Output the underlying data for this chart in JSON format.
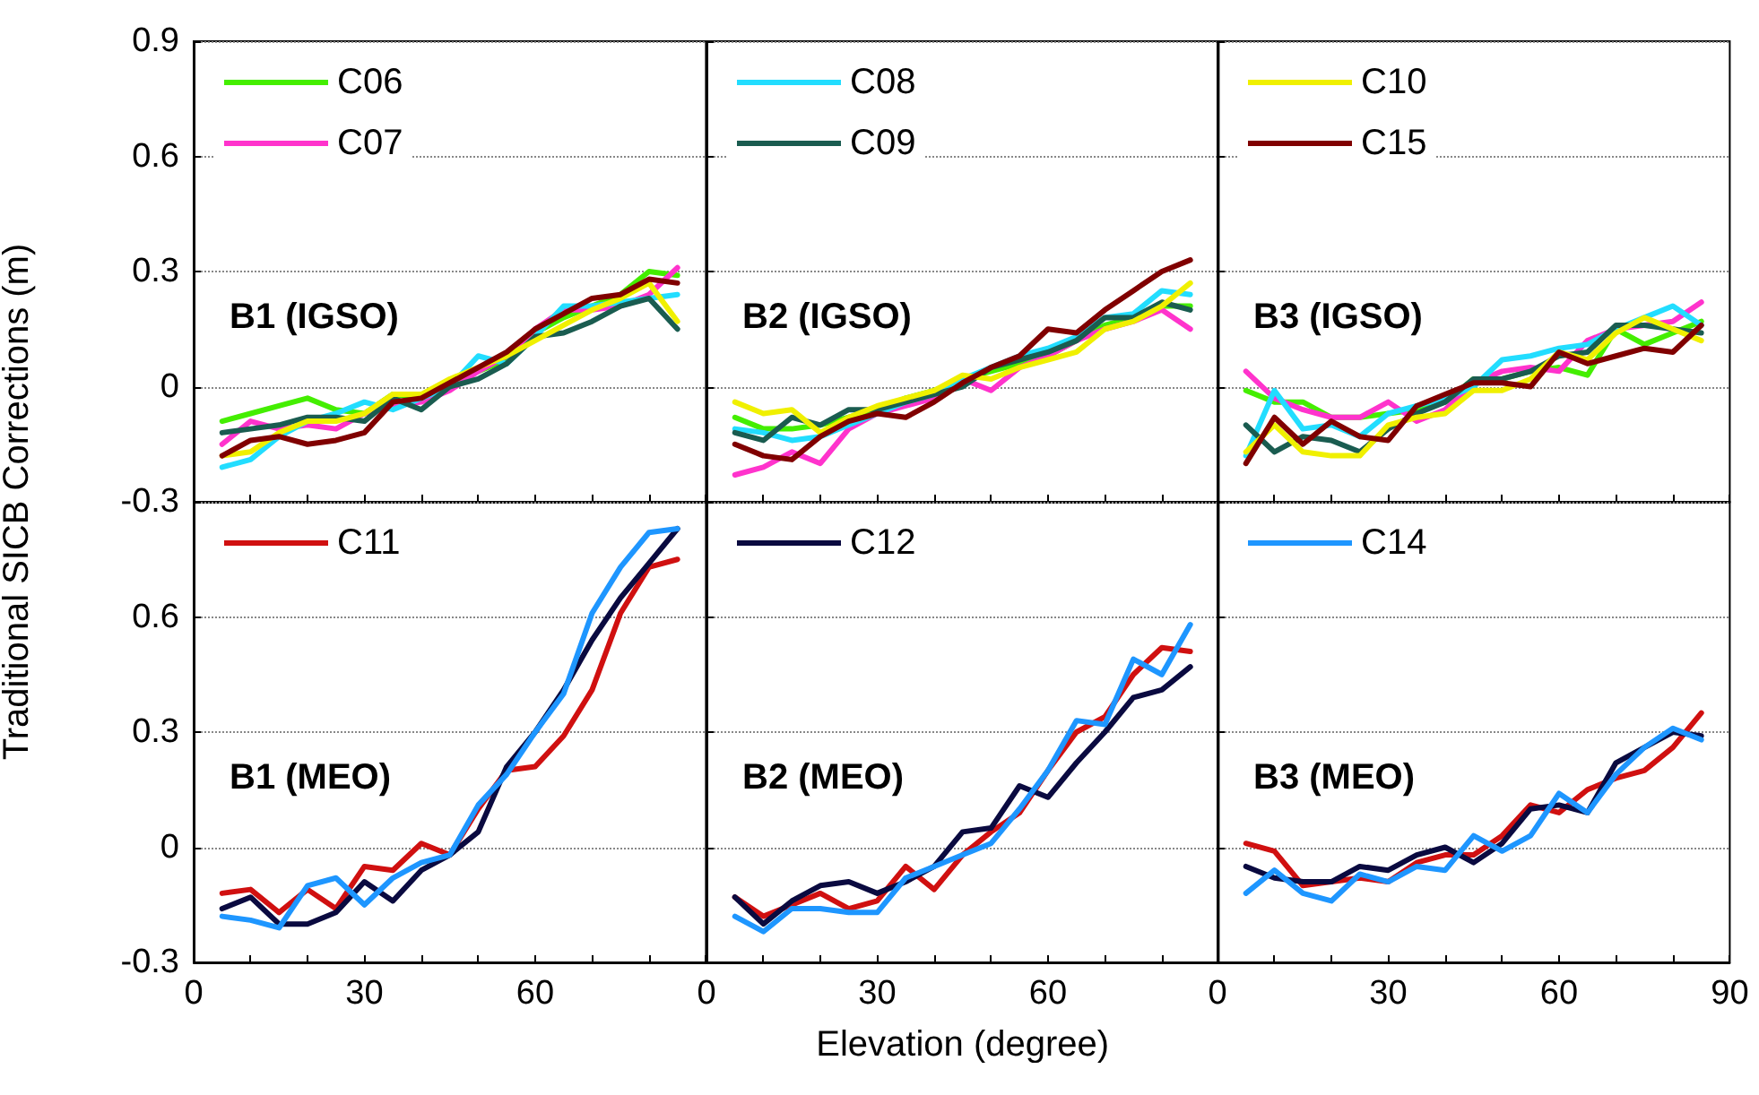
{
  "chart_data": [
    {
      "type": "line",
      "annotations": [
        "B1 (IGSO)"
      ],
      "ylabel": "Traditional SICB Corrections (m)",
      "x": [
        5,
        10,
        15,
        20,
        25,
        30,
        35,
        40,
        45,
        50,
        55,
        60,
        65,
        70,
        75,
        80,
        85
      ],
      "xlim": [
        0,
        90
      ],
      "ylim": [
        -0.3,
        0.9
      ],
      "xticks": [
        0,
        {
          "value": 10,
          "label": null
        },
        {
          "value": 20,
          "label": null
        },
        30,
        {
          "value": 40,
          "label": null
        },
        {
          "value": 50,
          "label": null
        },
        60,
        {
          "value": 70,
          "label": null
        },
        {
          "value": 80,
          "label": null
        },
        {
          "value": 90,
          "label": null
        }
      ],
      "yticks": [
        -0.3,
        0,
        0.3,
        0.6,
        0.9
      ],
      "tick_labels": "y",
      "grid": "y",
      "legend": "top left",
      "line_style": "solid",
      "marker": "none",
      "series": [
        {
          "name": "C06",
          "color": "#44ee00",
          "values": [
            -0.09,
            -0.07,
            -0.05,
            -0.03,
            -0.06,
            -0.07,
            -0.02,
            -0.03,
            0.01,
            0.04,
            0.07,
            0.14,
            0.18,
            0.21,
            0.24,
            0.3,
            0.29
          ]
        },
        {
          "name": "C07",
          "color": "#ff33cc",
          "values": [
            -0.15,
            -0.09,
            -0.11,
            -0.1,
            -0.11,
            -0.07,
            -0.05,
            -0.04,
            -0.01,
            0.04,
            0.08,
            0.15,
            0.2,
            0.2,
            0.21,
            0.24,
            0.31
          ]
        },
        {
          "color": "#22ddff",
          "values": [
            -0.21,
            -0.19,
            -0.13,
            -0.09,
            -0.07,
            -0.04,
            -0.06,
            -0.03,
            0.0,
            0.08,
            0.06,
            0.13,
            0.21,
            0.21,
            0.22,
            0.23,
            0.24
          ]
        },
        {
          "color": "#1a5c50",
          "values": [
            -0.12,
            -0.11,
            -0.1,
            -0.08,
            -0.08,
            -0.09,
            -0.03,
            -0.06,
            0.0,
            0.02,
            0.06,
            0.13,
            0.14,
            0.17,
            0.21,
            0.23,
            0.15
          ]
        },
        {
          "color": "#f0f000",
          "values": [
            -0.18,
            -0.17,
            -0.12,
            -0.09,
            -0.09,
            -0.07,
            -0.02,
            -0.02,
            0.02,
            0.05,
            0.08,
            0.12,
            0.16,
            0.2,
            0.23,
            0.27,
            0.17
          ]
        },
        {
          "color": "#800000",
          "values": [
            -0.18,
            -0.14,
            -0.13,
            -0.15,
            -0.14,
            -0.12,
            -0.04,
            -0.03,
            0.01,
            0.05,
            0.09,
            0.15,
            0.19,
            0.23,
            0.24,
            0.28,
            0.27
          ]
        }
      ]
    },
    {
      "type": "line",
      "annotations": [
        "B2 (IGSO)"
      ],
      "x": [
        5,
        10,
        15,
        20,
        25,
        30,
        35,
        40,
        45,
        50,
        55,
        60,
        65,
        70,
        75,
        80,
        85
      ],
      "xlim": [
        0,
        90
      ],
      "ylim": [
        -0.3,
        0.9
      ],
      "xticks": [
        0,
        {
          "value": 10,
          "label": null
        },
        {
          "value": 20,
          "label": null
        },
        30,
        {
          "value": 40,
          "label": null
        },
        {
          "value": 50,
          "label": null
        },
        60,
        {
          "value": 70,
          "label": null
        },
        {
          "value": 80,
          "label": null
        },
        {
          "value": 90,
          "label": null
        }
      ],
      "yticks": [
        -0.3,
        0,
        0.3,
        0.6,
        0.9
      ],
      "tick_labels": false,
      "grid": "y",
      "legend": "top left",
      "line_style": "solid",
      "marker": "none",
      "series": [
        {
          "color": "#44ee00",
          "values": [
            -0.08,
            -0.11,
            -0.11,
            -0.1,
            -0.08,
            -0.06,
            -0.03,
            -0.01,
            0.02,
            0.04,
            0.06,
            0.08,
            0.12,
            0.16,
            0.18,
            0.21,
            0.21
          ]
        },
        {
          "color": "#ff33cc",
          "values": [
            -0.23,
            -0.21,
            -0.17,
            -0.2,
            -0.11,
            -0.07,
            -0.05,
            -0.03,
            0.02,
            -0.01,
            0.05,
            0.08,
            0.12,
            0.15,
            0.17,
            0.2,
            0.15
          ]
        },
        {
          "name": "C08",
          "color": "#22ddff",
          "values": [
            -0.11,
            -0.12,
            -0.14,
            -0.13,
            -0.1,
            -0.07,
            -0.04,
            -0.02,
            0.02,
            0.05,
            0.08,
            0.1,
            0.13,
            0.18,
            0.19,
            0.25,
            0.24
          ]
        },
        {
          "name": "C09",
          "color": "#1a5c50",
          "values": [
            -0.12,
            -0.14,
            -0.08,
            -0.1,
            -0.06,
            -0.06,
            -0.04,
            -0.02,
            0.0,
            0.05,
            0.07,
            0.09,
            0.12,
            0.18,
            0.18,
            0.22,
            0.2
          ]
        },
        {
          "color": "#f0f000",
          "values": [
            -0.04,
            -0.07,
            -0.06,
            -0.12,
            -0.08,
            -0.05,
            -0.03,
            -0.01,
            0.03,
            0.02,
            0.05,
            0.07,
            0.09,
            0.15,
            0.17,
            0.21,
            0.27
          ]
        },
        {
          "color": "#800000",
          "values": [
            -0.15,
            -0.18,
            -0.19,
            -0.13,
            -0.09,
            -0.07,
            -0.08,
            -0.04,
            0.01,
            0.05,
            0.08,
            0.15,
            0.14,
            0.2,
            0.25,
            0.3,
            0.33
          ]
        }
      ]
    },
    {
      "type": "line",
      "annotations": [
        "B3 (IGSO)"
      ],
      "x": [
        5,
        10,
        15,
        20,
        25,
        30,
        35,
        40,
        45,
        50,
        55,
        60,
        65,
        70,
        75,
        80,
        85
      ],
      "xlim": [
        0,
        90
      ],
      "ylim": [
        -0.3,
        0.9
      ],
      "xticks": [
        0,
        {
          "value": 10,
          "label": null
        },
        {
          "value": 20,
          "label": null
        },
        30,
        {
          "value": 40,
          "label": null
        },
        {
          "value": 50,
          "label": null
        },
        60,
        {
          "value": 70,
          "label": null
        },
        {
          "value": 80,
          "label": null
        },
        90
      ],
      "yticks": [
        -0.3,
        0,
        0.3,
        0.6,
        0.9
      ],
      "tick_labels": false,
      "grid": "y",
      "legend": "top left",
      "line_style": "solid",
      "marker": "none",
      "series": [
        {
          "color": "#44ee00",
          "values": [
            -0.01,
            -0.04,
            -0.04,
            -0.08,
            -0.08,
            -0.07,
            -0.06,
            -0.04,
            0.02,
            0.02,
            0.04,
            0.05,
            0.03,
            0.15,
            0.11,
            0.14,
            0.17
          ]
        },
        {
          "color": "#ff33cc",
          "values": [
            0.04,
            -0.03,
            -0.06,
            -0.08,
            -0.08,
            -0.04,
            -0.09,
            -0.06,
            0.01,
            0.04,
            0.05,
            0.04,
            0.12,
            0.15,
            0.16,
            0.17,
            0.22
          ]
        },
        {
          "color": "#22ddff",
          "values": [
            -0.18,
            -0.01,
            -0.11,
            -0.1,
            -0.13,
            -0.07,
            -0.05,
            -0.03,
            0.0,
            0.07,
            0.08,
            0.1,
            0.11,
            0.15,
            0.18,
            0.21,
            0.16
          ]
        },
        {
          "color": "#1a5c50",
          "values": [
            -0.1,
            -0.17,
            -0.13,
            -0.14,
            -0.17,
            -0.11,
            -0.07,
            -0.04,
            0.02,
            0.02,
            0.04,
            0.08,
            0.09,
            0.16,
            0.16,
            0.15,
            0.14
          ]
        },
        {
          "name": "C10",
          "color": "#f0f000",
          "values": [
            -0.17,
            -0.1,
            -0.17,
            -0.18,
            -0.18,
            -0.1,
            -0.08,
            -0.07,
            -0.01,
            -0.01,
            0.02,
            0.09,
            0.07,
            0.14,
            0.18,
            0.15,
            0.12
          ]
        },
        {
          "name": "C15",
          "color": "#800000",
          "values": [
            -0.2,
            -0.08,
            -0.15,
            -0.09,
            -0.13,
            -0.14,
            -0.05,
            -0.02,
            0.01,
            0.01,
            0.0,
            0.09,
            0.06,
            0.08,
            0.1,
            0.09,
            0.16
          ]
        }
      ]
    },
    {
      "type": "line",
      "annotations": [
        "B1 (MEO)"
      ],
      "x": [
        5,
        10,
        15,
        20,
        25,
        30,
        35,
        40,
        45,
        50,
        55,
        60,
        65,
        70,
        75,
        80,
        85
      ],
      "xlim": [
        0,
        90
      ],
      "ylim": [
        -0.3,
        0.9
      ],
      "xticks": [
        0,
        {
          "value": 10,
          "label": null
        },
        {
          "value": 20,
          "label": null
        },
        30,
        {
          "value": 40,
          "label": null
        },
        {
          "value": 50,
          "label": null
        },
        60,
        {
          "value": 70,
          "label": null
        },
        {
          "value": 80,
          "label": null
        },
        {
          "value": 90,
          "label": null
        }
      ],
      "yticks": [
        -0.3,
        0,
        0.3,
        0.6,
        {
          "value": 0.9,
          "label": null
        }
      ],
      "grid": "y",
      "legend": "top left",
      "line_style": "solid",
      "marker": "none",
      "series": [
        {
          "name": "C11",
          "color": "#d01010",
          "values": [
            -0.12,
            -0.11,
            -0.17,
            -0.11,
            -0.16,
            -0.05,
            -0.06,
            0.01,
            -0.02,
            0.1,
            0.2,
            0.21,
            0.29,
            0.41,
            0.61,
            0.73,
            0.75
          ]
        },
        {
          "color": "#0a0a40",
          "values": [
            -0.16,
            -0.13,
            -0.2,
            -0.2,
            -0.17,
            -0.09,
            -0.14,
            -0.06,
            -0.02,
            0.04,
            0.21,
            0.3,
            0.41,
            0.54,
            0.65,
            0.74,
            0.83
          ]
        },
        {
          "color": "#1e96ff",
          "values": [
            -0.18,
            -0.19,
            -0.21,
            -0.1,
            -0.08,
            -0.15,
            -0.08,
            -0.04,
            -0.02,
            0.11,
            0.19,
            0.3,
            0.4,
            0.61,
            0.73,
            0.82,
            0.83
          ]
        }
      ]
    },
    {
      "type": "line",
      "annotations": [
        "B2 (MEO)"
      ],
      "xlabel": "Elevation (degree)",
      "x": [
        5,
        10,
        15,
        20,
        25,
        30,
        35,
        40,
        45,
        50,
        55,
        60,
        65,
        70,
        75,
        80,
        85
      ],
      "xlim": [
        0,
        90
      ],
      "ylim": [
        -0.3,
        0.9
      ],
      "xticks": [
        0,
        {
          "value": 10,
          "label": null
        },
        {
          "value": 20,
          "label": null
        },
        30,
        {
          "value": 40,
          "label": null
        },
        {
          "value": 50,
          "label": null
        },
        60,
        {
          "value": 70,
          "label": null
        },
        {
          "value": 80,
          "label": null
        },
        {
          "value": 90,
          "label": null
        }
      ],
      "yticks": [
        -0.3,
        0,
        0.3,
        0.6,
        0.9
      ],
      "tick_labels": "x",
      "grid": "y",
      "legend": "top left",
      "line_style": "solid",
      "marker": "none",
      "series": [
        {
          "color": "#d01010",
          "values": [
            -0.13,
            -0.18,
            -0.15,
            -0.12,
            -0.16,
            -0.14,
            -0.05,
            -0.11,
            -0.02,
            0.04,
            0.09,
            0.2,
            0.3,
            0.34,
            0.45,
            0.52,
            0.51
          ]
        },
        {
          "name": "C12",
          "color": "#0a0a40",
          "values": [
            -0.13,
            -0.2,
            -0.14,
            -0.1,
            -0.09,
            -0.12,
            -0.09,
            -0.05,
            0.04,
            0.05,
            0.16,
            0.13,
            0.22,
            0.3,
            0.39,
            0.41,
            0.47
          ]
        },
        {
          "color": "#1e96ff",
          "values": [
            -0.18,
            -0.22,
            -0.16,
            -0.16,
            -0.17,
            -0.17,
            -0.08,
            -0.05,
            -0.02,
            0.01,
            0.1,
            0.2,
            0.33,
            0.32,
            0.49,
            0.45,
            0.58
          ]
        }
      ]
    },
    {
      "type": "line",
      "annotations": [
        "B3 (MEO)"
      ],
      "x": [
        5,
        10,
        15,
        20,
        25,
        30,
        35,
        40,
        45,
        50,
        55,
        60,
        65,
        70,
        75,
        80,
        85
      ],
      "xlim": [
        0,
        90
      ],
      "ylim": [
        -0.3,
        0.9
      ],
      "xticks": [
        0,
        {
          "value": 10,
          "label": null
        },
        {
          "value": 20,
          "label": null
        },
        30,
        {
          "value": 40,
          "label": null
        },
        {
          "value": 50,
          "label": null
        },
        60,
        {
          "value": 70,
          "label": null
        },
        {
          "value": 80,
          "label": null
        },
        90
      ],
      "yticks": [
        -0.3,
        0,
        0.3,
        0.6,
        0.9
      ],
      "tick_labels": "x",
      "grid": "y",
      "legend": "top left",
      "line_style": "solid",
      "marker": "none",
      "series": [
        {
          "color": "#d01010",
          "values": [
            0.01,
            -0.01,
            -0.1,
            -0.09,
            -0.08,
            -0.09,
            -0.04,
            -0.02,
            -0.02,
            0.03,
            0.11,
            0.09,
            0.15,
            0.18,
            0.2,
            0.26,
            0.35
          ]
        },
        {
          "color": "#0a0a40",
          "values": [
            -0.05,
            -0.08,
            -0.09,
            -0.09,
            -0.05,
            -0.06,
            -0.02,
            0.0,
            -0.04,
            0.01,
            0.1,
            0.11,
            0.09,
            0.22,
            0.26,
            0.3,
            0.29
          ]
        },
        {
          "name": "C14",
          "color": "#1e96ff",
          "values": [
            -0.12,
            -0.06,
            -0.12,
            -0.14,
            -0.07,
            -0.09,
            -0.05,
            -0.06,
            0.03,
            -0.01,
            0.03,
            0.14,
            0.09,
            0.19,
            0.26,
            0.31,
            0.28
          ]
        }
      ]
    }
  ]
}
